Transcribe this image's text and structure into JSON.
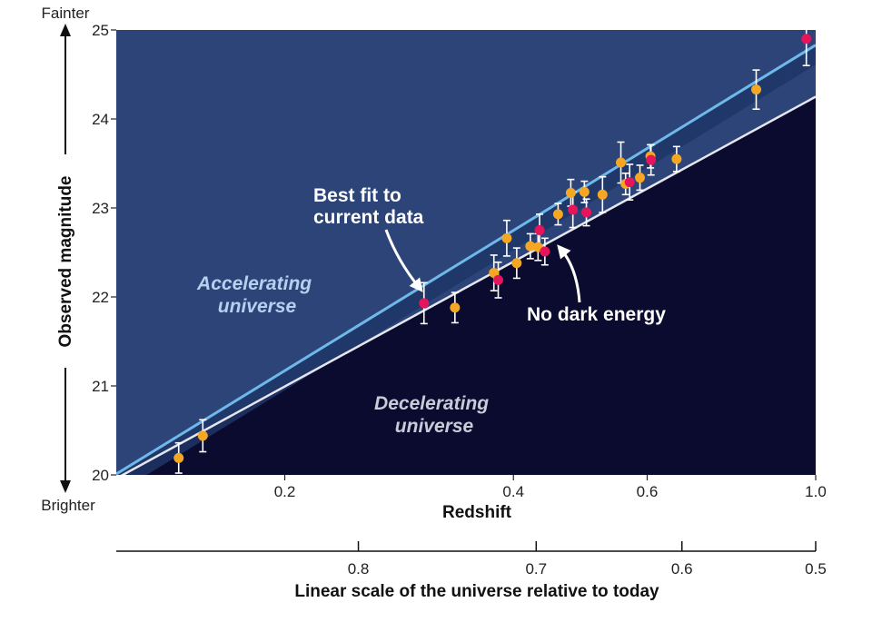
{
  "chart_data": {
    "type": "scatter",
    "xlabel": "Redshift",
    "ylabel": "Observed magnitude",
    "x_scale": "log",
    "xlim": [
      0.12,
      1.0
    ],
    "ylim": [
      20,
      25
    ],
    "x_ticks": [
      {
        "value": 0.2,
        "label": "0.2"
      },
      {
        "value": 0.4,
        "label": "0.4"
      },
      {
        "value": 0.6,
        "label": "0.6"
      },
      {
        "value": 1.0,
        "label": "1.0"
      }
    ],
    "y_ticks": [
      "20",
      "21",
      "22",
      "23",
      "24",
      "25"
    ],
    "y_top_label": "Fainter",
    "y_bottom_label": "Brighter",
    "secondary_axis": {
      "xlabel": "Linear scale of the universe relative to today",
      "ticks": [
        {
          "value": 0.8,
          "label": "0.8"
        },
        {
          "value": 0.7,
          "label": "0.7"
        },
        {
          "value": 0.6,
          "label": "0.6"
        },
        {
          "value": 0.5,
          "label": "0.5"
        }
      ]
    },
    "regions": [
      {
        "label": "Accelerating universe",
        "lines": [
          "Accelerating",
          "universe"
        ]
      },
      {
        "label": "Decelerating universe",
        "lines": [
          "Decelerating",
          "universe"
        ]
      }
    ],
    "lines": [
      {
        "label": "Best fit to current data",
        "label_lines": [
          "Best fit to",
          "current data"
        ],
        "points": [
          [
            0.12,
            20.01
          ],
          [
            1.0,
            24.83
          ]
        ]
      },
      {
        "label": "No dark energy",
        "points": [
          [
            0.12,
            19.96
          ],
          [
            1.0,
            24.25
          ]
        ]
      }
    ],
    "series": [
      {
        "color": "#f5a623",
        "points": [
          {
            "x": 0.145,
            "y": 20.19,
            "err": 0.17
          },
          {
            "x": 0.156,
            "y": 20.44,
            "err": 0.18
          },
          {
            "x": 0.335,
            "y": 21.88,
            "err": 0.17
          },
          {
            "x": 0.377,
            "y": 22.27,
            "err": 0.2
          },
          {
            "x": 0.392,
            "y": 22.66,
            "err": 0.2
          },
          {
            "x": 0.404,
            "y": 22.38,
            "err": 0.17
          },
          {
            "x": 0.421,
            "y": 22.57,
            "err": 0.14
          },
          {
            "x": 0.431,
            "y": 22.56,
            "err": 0.15
          },
          {
            "x": 0.458,
            "y": 22.93,
            "err": 0.12
          },
          {
            "x": 0.476,
            "y": 23.17,
            "err": 0.15
          },
          {
            "x": 0.496,
            "y": 23.18,
            "err": 0.12
          },
          {
            "x": 0.524,
            "y": 23.15,
            "err": 0.2
          },
          {
            "x": 0.554,
            "y": 23.51,
            "err": 0.23
          },
          {
            "x": 0.562,
            "y": 23.27,
            "err": 0.12
          },
          {
            "x": 0.587,
            "y": 23.34,
            "err": 0.14
          },
          {
            "x": 0.606,
            "y": 23.58,
            "err": 0.13
          },
          {
            "x": 0.656,
            "y": 23.55,
            "err": 0.14
          },
          {
            "x": 0.835,
            "y": 24.33,
            "err": 0.22
          }
        ]
      },
      {
        "color": "#e6145a",
        "points": [
          {
            "x": 0.305,
            "y": 21.93,
            "err": 0.23
          },
          {
            "x": 0.382,
            "y": 22.19,
            "err": 0.2
          },
          {
            "x": 0.433,
            "y": 22.75,
            "err": 0.18
          },
          {
            "x": 0.44,
            "y": 22.51,
            "err": 0.15
          },
          {
            "x": 0.479,
            "y": 22.98,
            "err": 0.2
          },
          {
            "x": 0.499,
            "y": 22.95,
            "err": 0.15
          },
          {
            "x": 0.569,
            "y": 23.29,
            "err": 0.2
          },
          {
            "x": 0.607,
            "y": 23.54,
            "err": 0.17
          },
          {
            "x": 0.972,
            "y": 24.9,
            "err": 0.3
          }
        ]
      }
    ],
    "colors": {
      "accelerating_region": "#2c4478",
      "decelerating_region": "#0a0b2e",
      "best_fit_line": "#6fb8ea",
      "no_dark_energy_line": "#e6e6ee",
      "error_bar": "#ffffff"
    }
  }
}
